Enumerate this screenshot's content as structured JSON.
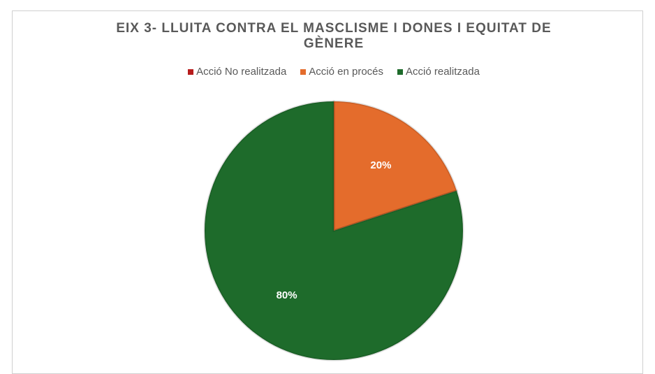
{
  "chart_data": {
    "type": "pie",
    "title": "EIX 3- LLUITA CONTRA EL MASCLISME I DONES I EQUITAT DE GÈNERE",
    "categories": [
      "Acció No realitzada",
      "Acció en procés",
      "Acció realitzada"
    ],
    "values": [
      0,
      20,
      80
    ],
    "value_labels": [
      null,
      "20%",
      "80%"
    ],
    "colors": [
      "#b71c1c",
      "#e46c2c",
      "#1e6b2b"
    ],
    "legend": "top"
  }
}
